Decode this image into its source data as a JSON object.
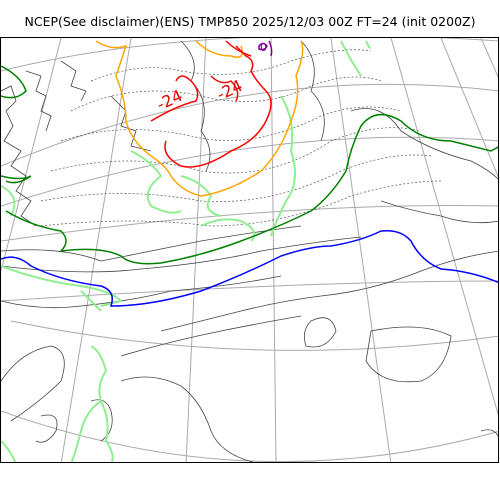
{
  "title": "NCEP(See disclaimer)(ENS) TMP850 2025/12/03 00Z FT=24 (init 0200Z)",
  "contour_labels": {
    "minus24_left": "-24",
    "minus24_right": "-24",
    "zero": "0"
  },
  "colors": {
    "coast": "#444444",
    "grid": "#aaaaaa",
    "isotherm_dotted": "#555555",
    "green_light": "#90ee90",
    "green_dark": "#008000",
    "blue": "#0000ff",
    "orange": "#ffa500",
    "red": "#ff0000",
    "purple": "#800080"
  }
}
